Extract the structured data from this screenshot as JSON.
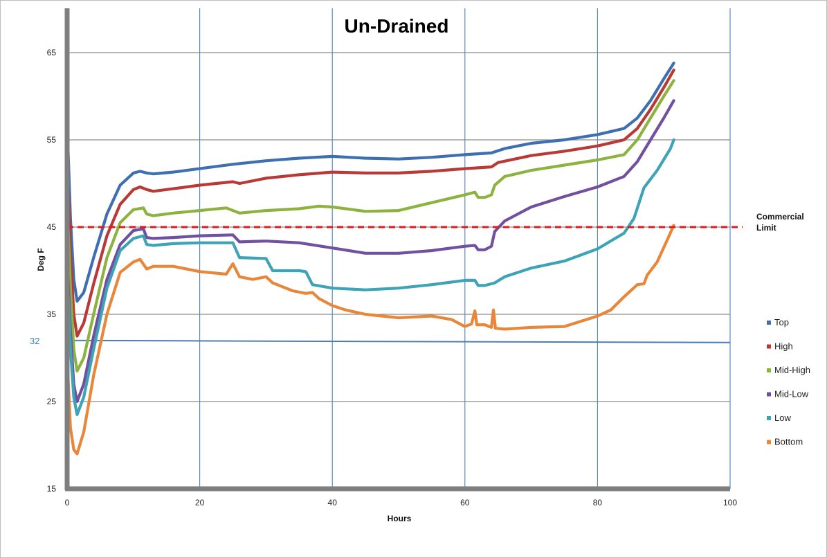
{
  "chart_data": {
    "type": "line",
    "title": "Un-Drained",
    "xlabel": "Hours",
    "ylabel": "Deg F",
    "xlim": [
      0,
      100
    ],
    "ylim": [
      15,
      70
    ],
    "x_ticks": [
      0,
      20,
      40,
      60,
      80,
      100
    ],
    "y_ticks": [
      15,
      25,
      35,
      45,
      55,
      65
    ],
    "grid": "on",
    "legend_position": "right",
    "reference_lines": {
      "freezing": {
        "value": 32,
        "label": "32",
        "color": "#4a7ebb"
      },
      "commercial_limit": {
        "value": 45,
        "label_line1": "Commercial",
        "label_line2": "Limit",
        "color": "#e31a1c"
      }
    },
    "series": [
      {
        "name": "Top",
        "color": "#3e6fb0",
        "points": [
          [
            0,
            57
          ],
          [
            0.5,
            46
          ],
          [
            1,
            39
          ],
          [
            1.5,
            36.5
          ],
          [
            2.5,
            37.5
          ],
          [
            4,
            41.5
          ],
          [
            6,
            46.5
          ],
          [
            8,
            49.8
          ],
          [
            10,
            51.2
          ],
          [
            11,
            51.4
          ],
          [
            12,
            51.2
          ],
          [
            13,
            51.1
          ],
          [
            16,
            51.3
          ],
          [
            20,
            51.7
          ],
          [
            25,
            52.2
          ],
          [
            30,
            52.6
          ],
          [
            35,
            52.9
          ],
          [
            40,
            53.1
          ],
          [
            45,
            52.9
          ],
          [
            50,
            52.8
          ],
          [
            55,
            53.0
          ],
          [
            60,
            53.3
          ],
          [
            64,
            53.5
          ],
          [
            66,
            54.0
          ],
          [
            70,
            54.6
          ],
          [
            75,
            55.0
          ],
          [
            80,
            55.6
          ],
          [
            84,
            56.3
          ],
          [
            86,
            57.5
          ],
          [
            88,
            59.5
          ],
          [
            90,
            62
          ],
          [
            91.5,
            63.8
          ]
        ]
      },
      {
        "name": "High",
        "color": "#b83a37",
        "points": [
          [
            0,
            53
          ],
          [
            0.5,
            42
          ],
          [
            1,
            35
          ],
          [
            1.5,
            32.5
          ],
          [
            2.5,
            34
          ],
          [
            4,
            38.5
          ],
          [
            6,
            44
          ],
          [
            8,
            47.6
          ],
          [
            10,
            49.3
          ],
          [
            11,
            49.6
          ],
          [
            12,
            49.3
          ],
          [
            13,
            49.1
          ],
          [
            16,
            49.4
          ],
          [
            20,
            49.8
          ],
          [
            25,
            50.2
          ],
          [
            26,
            50.0
          ],
          [
            30,
            50.6
          ],
          [
            35,
            51.0
          ],
          [
            40,
            51.3
          ],
          [
            45,
            51.2
          ],
          [
            50,
            51.2
          ],
          [
            55,
            51.4
          ],
          [
            60,
            51.7
          ],
          [
            64,
            51.9
          ],
          [
            65,
            52.4
          ],
          [
            70,
            53.2
          ],
          [
            75,
            53.7
          ],
          [
            80,
            54.3
          ],
          [
            84,
            55
          ],
          [
            86,
            56.3
          ],
          [
            88,
            58.5
          ],
          [
            90,
            61
          ],
          [
            91.5,
            63
          ]
        ]
      },
      {
        "name": "Mid-High",
        "color": "#8db33f",
        "points": [
          [
            0,
            48
          ],
          [
            0.5,
            38
          ],
          [
            1,
            31
          ],
          [
            1.5,
            28.5
          ],
          [
            2.5,
            30
          ],
          [
            4,
            35
          ],
          [
            6,
            41.5
          ],
          [
            8,
            45.5
          ],
          [
            10,
            47
          ],
          [
            11.5,
            47.2
          ],
          [
            12,
            46.5
          ],
          [
            13,
            46.3
          ],
          [
            16,
            46.6
          ],
          [
            20,
            46.9
          ],
          [
            24,
            47.2
          ],
          [
            26,
            46.6
          ],
          [
            30,
            46.9
          ],
          [
            35,
            47.1
          ],
          [
            38,
            47.4
          ],
          [
            40,
            47.3
          ],
          [
            45,
            46.8
          ],
          [
            50,
            46.9
          ],
          [
            55,
            47.8
          ],
          [
            60,
            48.7
          ],
          [
            61.5,
            49
          ],
          [
            62,
            48.4
          ],
          [
            63,
            48.4
          ],
          [
            64,
            48.7
          ],
          [
            64.5,
            49.8
          ],
          [
            66,
            50.8
          ],
          [
            70,
            51.5
          ],
          [
            75,
            52.1
          ],
          [
            80,
            52.7
          ],
          [
            84,
            53.3
          ],
          [
            86,
            55
          ],
          [
            88,
            57.5
          ],
          [
            90,
            60
          ],
          [
            91.5,
            61.8
          ]
        ]
      },
      {
        "name": "Mid-Low",
        "color": "#7150a0",
        "points": [
          [
            0,
            42
          ],
          [
            0.5,
            33
          ],
          [
            1,
            27
          ],
          [
            1.5,
            25
          ],
          [
            2.5,
            27
          ],
          [
            4,
            32.5
          ],
          [
            6,
            39
          ],
          [
            8,
            43
          ],
          [
            10,
            44.6
          ],
          [
            11.5,
            44.8
          ],
          [
            12,
            43.8
          ],
          [
            13,
            43.7
          ],
          [
            16,
            43.8
          ],
          [
            20,
            44
          ],
          [
            25,
            44.1
          ],
          [
            26,
            43.3
          ],
          [
            30,
            43.4
          ],
          [
            35,
            43.2
          ],
          [
            40,
            42.6
          ],
          [
            45,
            42.0
          ],
          [
            50,
            42.0
          ],
          [
            55,
            42.3
          ],
          [
            60,
            42.8
          ],
          [
            61.5,
            42.9
          ],
          [
            62,
            42.4
          ],
          [
            63,
            42.4
          ],
          [
            64,
            42.8
          ],
          [
            64.5,
            44.5
          ],
          [
            66,
            45.7
          ],
          [
            70,
            47.3
          ],
          [
            75,
            48.5
          ],
          [
            80,
            49.6
          ],
          [
            84,
            50.8
          ],
          [
            86,
            52.5
          ],
          [
            88,
            55
          ],
          [
            90,
            57.5
          ],
          [
            91.5,
            59.5
          ]
        ]
      },
      {
        "name": "Low",
        "color": "#3fa3b8",
        "points": [
          [
            0,
            40
          ],
          [
            0.5,
            31
          ],
          [
            1,
            25.5
          ],
          [
            1.5,
            23.5
          ],
          [
            2.5,
            25.5
          ],
          [
            4,
            31
          ],
          [
            6,
            38
          ],
          [
            8,
            42.3
          ],
          [
            10,
            43.7
          ],
          [
            11.5,
            44
          ],
          [
            12,
            43
          ],
          [
            13,
            42.9
          ],
          [
            16,
            43.1
          ],
          [
            20,
            43.2
          ],
          [
            25,
            43.2
          ],
          [
            26,
            41.5
          ],
          [
            30,
            41.4
          ],
          [
            31,
            40.0
          ],
          [
            35,
            40.0
          ],
          [
            36,
            39.9
          ],
          [
            37,
            38.4
          ],
          [
            40,
            38.0
          ],
          [
            45,
            37.8
          ],
          [
            50,
            38.0
          ],
          [
            55,
            38.4
          ],
          [
            60,
            38.9
          ],
          [
            61.5,
            38.9
          ],
          [
            62,
            38.3
          ],
          [
            63,
            38.3
          ],
          [
            64,
            38.5
          ],
          [
            64.5,
            38.6
          ],
          [
            66,
            39.3
          ],
          [
            70,
            40.3
          ],
          [
            75,
            41.1
          ],
          [
            80,
            42.5
          ],
          [
            84,
            44.3
          ],
          [
            85.5,
            46
          ],
          [
            87,
            49.5
          ],
          [
            89,
            51.5
          ],
          [
            91,
            54
          ],
          [
            91.5,
            55
          ]
        ]
      },
      {
        "name": "Bottom",
        "color": "#e8873a",
        "points": [
          [
            0,
            30
          ],
          [
            0.5,
            22
          ],
          [
            1,
            19.5
          ],
          [
            1.5,
            19
          ],
          [
            2.5,
            21.5
          ],
          [
            4,
            28
          ],
          [
            6,
            35
          ],
          [
            8,
            39.8
          ],
          [
            10,
            41
          ],
          [
            11,
            41.3
          ],
          [
            12,
            40.2
          ],
          [
            13,
            40.5
          ],
          [
            16,
            40.5
          ],
          [
            20,
            39.9
          ],
          [
            24,
            39.6
          ],
          [
            25,
            40.8
          ],
          [
            26,
            39.3
          ],
          [
            28,
            39.0
          ],
          [
            30,
            39.3
          ],
          [
            31,
            38.6
          ],
          [
            34,
            37.7
          ],
          [
            36,
            37.4
          ],
          [
            37,
            37.5
          ],
          [
            38,
            36.8
          ],
          [
            40,
            36.0
          ],
          [
            42,
            35.5
          ],
          [
            45,
            35.0
          ],
          [
            50,
            34.6
          ],
          [
            55,
            34.8
          ],
          [
            58,
            34.4
          ],
          [
            60,
            33.6
          ],
          [
            61,
            33.9
          ],
          [
            61.5,
            35.4
          ],
          [
            61.8,
            33.8
          ],
          [
            63,
            33.8
          ],
          [
            64,
            33.5
          ],
          [
            64.3,
            35.5
          ],
          [
            64.6,
            33.4
          ],
          [
            66,
            33.3
          ],
          [
            70,
            33.5
          ],
          [
            75,
            33.6
          ],
          [
            80,
            34.8
          ],
          [
            82,
            35.5
          ],
          [
            84,
            37
          ],
          [
            86,
            38.4
          ],
          [
            87,
            38.5
          ],
          [
            87.5,
            39.5
          ],
          [
            89,
            41
          ],
          [
            90.5,
            43.5
          ],
          [
            91.5,
            45.2
          ]
        ]
      }
    ]
  }
}
